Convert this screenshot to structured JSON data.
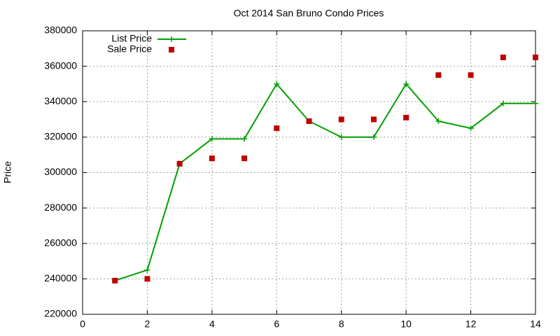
{
  "chart_data": {
    "type": "line",
    "title": "Oct 2014 San Bruno Condo Prices",
    "y_label": "Price",
    "x": [
      1,
      2,
      3,
      4,
      5,
      6,
      7,
      8,
      9,
      10,
      11,
      12,
      13,
      14
    ],
    "series": [
      {
        "name": "List Price",
        "color": "#00a000",
        "style": "linespoints",
        "values": [
          239000,
          245000,
          305000,
          319000,
          319000,
          350000,
          329000,
          320000,
          320000,
          350000,
          329000,
          325000,
          339000,
          339000
        ]
      },
      {
        "name": "Sale Price",
        "color": "#c00000",
        "style": "points",
        "values": [
          239000,
          240000,
          305000,
          308000,
          308000,
          325000,
          329000,
          330000,
          330000,
          331000,
          355000,
          355000,
          365000,
          365000
        ]
      }
    ],
    "xlim": [
      0,
      14
    ],
    "xticks": [
      0,
      2,
      4,
      6,
      8,
      10,
      12,
      14
    ],
    "ylim": [
      220000,
      380000
    ],
    "yticks": [
      220000,
      240000,
      260000,
      280000,
      300000,
      320000,
      340000,
      360000,
      380000
    ],
    "grid": true,
    "legend": "top-left"
  }
}
